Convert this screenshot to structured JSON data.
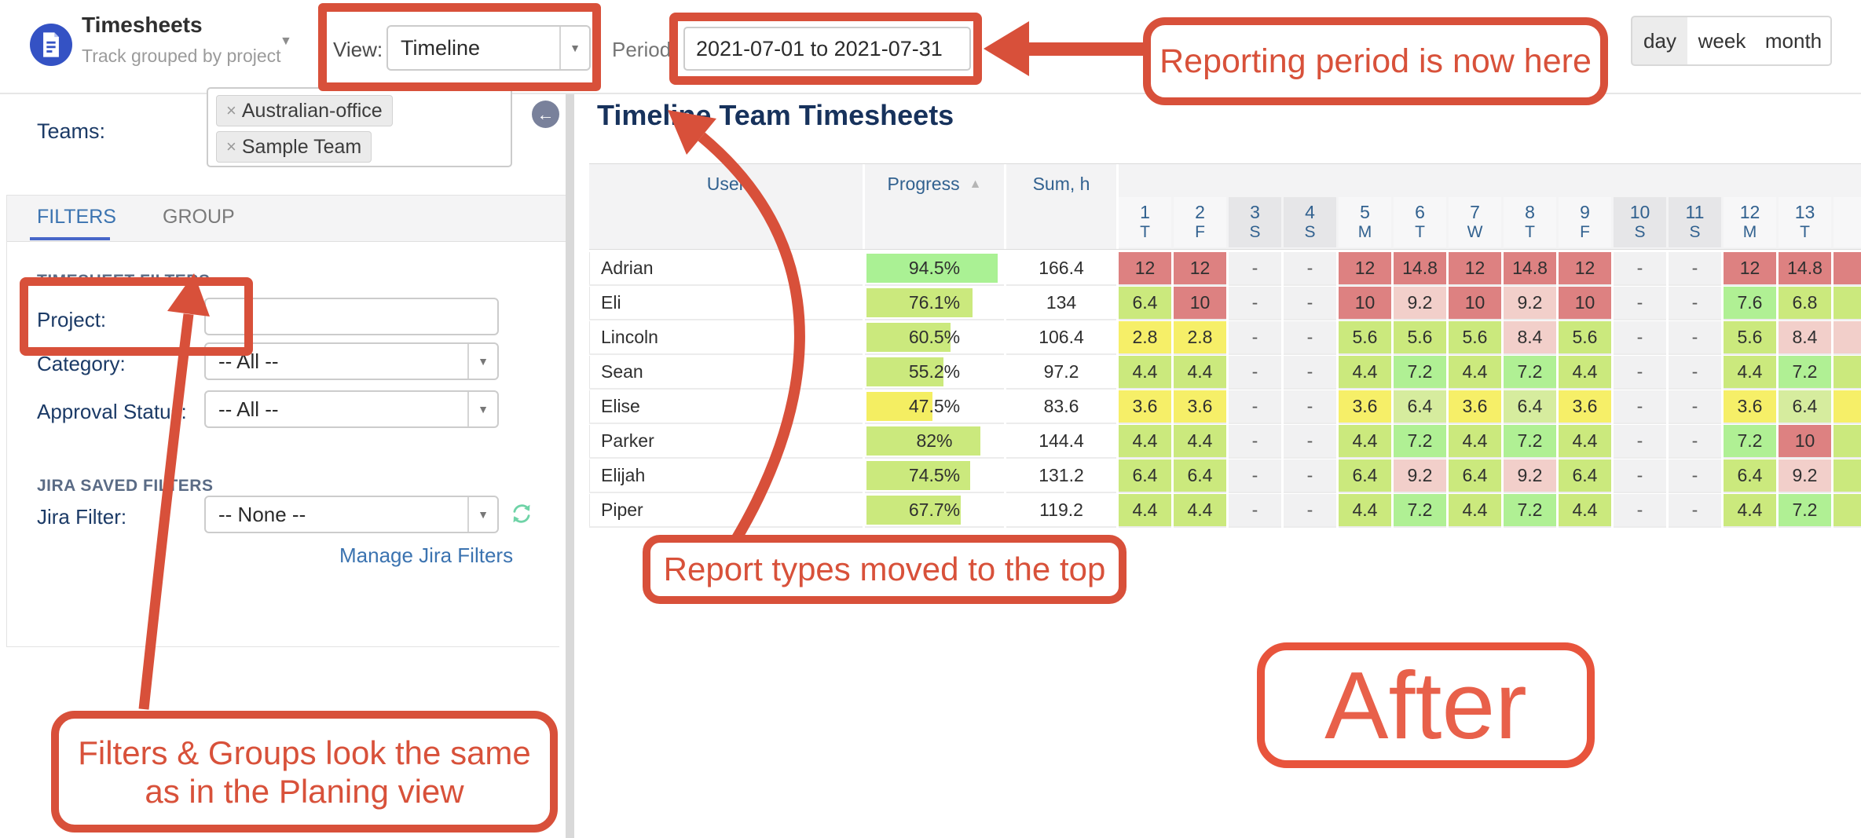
{
  "app": {
    "title": "Timesheets",
    "subtitle": "Track grouped by project"
  },
  "toolbar": {
    "view_label": "View:",
    "view_value": "Timeline",
    "period_label": "Period",
    "period_value": "2021-07-01 to 2021-07-31",
    "zoom_buttons": [
      {
        "label": "day",
        "active": true
      },
      {
        "label": "week",
        "active": false
      },
      {
        "label": "month",
        "active": false
      }
    ]
  },
  "sidebar": {
    "teams_label": "Teams:",
    "team_tags": [
      {
        "x": "×",
        "label": "Australian-office"
      },
      {
        "x": "×",
        "label": "Sample Team"
      }
    ],
    "tabs": {
      "filters": "FILTERS",
      "group": "GROUP"
    },
    "sections": {
      "timesheet_filters": "TIMESHEET FILTERS",
      "jira_saved_filters": "JIRA SAVED FILTERS"
    },
    "fields": {
      "project_label": "Project:",
      "project_value": "",
      "category_label": "Category:",
      "category_value": "-- All --",
      "approval_label": "Approval Status:",
      "approval_value": "-- All --",
      "jira_filter_label": "Jira Filter:",
      "jira_filter_value": "-- None --"
    },
    "manage_link": "Manage Jira Filters"
  },
  "main": {
    "heading": "Timeline Team Timesheets"
  },
  "table": {
    "columns": {
      "user": "User",
      "progress": "Progress",
      "sum": "Sum, h",
      "sort_caret": "▲"
    },
    "days": [
      {
        "num": "1",
        "dow": "T",
        "we": "0"
      },
      {
        "num": "2",
        "dow": "F",
        "we": "0"
      },
      {
        "num": "3",
        "dow": "S",
        "we": "1"
      },
      {
        "num": "4",
        "dow": "S",
        "we": "1"
      },
      {
        "num": "5",
        "dow": "M",
        "we": "0"
      },
      {
        "num": "6",
        "dow": "T",
        "we": "0"
      },
      {
        "num": "7",
        "dow": "W",
        "we": "0"
      },
      {
        "num": "8",
        "dow": "T",
        "we": "0"
      },
      {
        "num": "9",
        "dow": "F",
        "we": "0"
      },
      {
        "num": "10",
        "dow": "S",
        "we": "1"
      },
      {
        "num": "11",
        "dow": "S",
        "we": "1"
      },
      {
        "num": "12",
        "dow": "M",
        "we": "0"
      },
      {
        "num": "13",
        "dow": "T",
        "we": "0"
      }
    ],
    "rows": [
      {
        "user": "Adrian",
        "progress": "94.5%",
        "progress_pct": 94.5,
        "progress_tone": "bright",
        "sum": "166.4",
        "cells": [
          {
            "v": "12",
            "t": "red"
          },
          {
            "v": "12",
            "t": "red"
          },
          {
            "v": "-",
            "t": "off"
          },
          {
            "v": "-",
            "t": "off"
          },
          {
            "v": "12",
            "t": "red"
          },
          {
            "v": "14.8",
            "t": "red"
          },
          {
            "v": "12",
            "t": "red"
          },
          {
            "v": "14.8",
            "t": "red"
          },
          {
            "v": "12",
            "t": "red"
          },
          {
            "v": "-",
            "t": "off"
          },
          {
            "v": "-",
            "t": "off"
          },
          {
            "v": "12",
            "t": "red"
          },
          {
            "v": "14.8",
            "t": "red"
          },
          {
            "v": "",
            "t": "red"
          }
        ]
      },
      {
        "user": "Eli",
        "progress": "76.1%",
        "progress_pct": 76.1,
        "progress_tone": "green",
        "sum": "134",
        "cells": [
          {
            "v": "6.4",
            "t": "green"
          },
          {
            "v": "10",
            "t": "red"
          },
          {
            "v": "-",
            "t": "off"
          },
          {
            "v": "-",
            "t": "off"
          },
          {
            "v": "10",
            "t": "red"
          },
          {
            "v": "9.2",
            "t": "pink"
          },
          {
            "v": "10",
            "t": "red"
          },
          {
            "v": "9.2",
            "t": "pink"
          },
          {
            "v": "10",
            "t": "red"
          },
          {
            "v": "-",
            "t": "off"
          },
          {
            "v": "-",
            "t": "off"
          },
          {
            "v": "7.6",
            "t": "bgreen"
          },
          {
            "v": "6.8",
            "t": "green"
          },
          {
            "v": "",
            "t": "green"
          }
        ]
      },
      {
        "user": "Lincoln",
        "progress": "60.5%",
        "progress_pct": 60.5,
        "progress_tone": "green",
        "sum": "106.4",
        "cells": [
          {
            "v": "2.8",
            "t": "yellow"
          },
          {
            "v": "2.8",
            "t": "yellow"
          },
          {
            "v": "-",
            "t": "off"
          },
          {
            "v": "-",
            "t": "off"
          },
          {
            "v": "5.6",
            "t": "green"
          },
          {
            "v": "5.6",
            "t": "green"
          },
          {
            "v": "5.6",
            "t": "green"
          },
          {
            "v": "8.4",
            "t": "pink"
          },
          {
            "v": "5.6",
            "t": "green"
          },
          {
            "v": "-",
            "t": "off"
          },
          {
            "v": "-",
            "t": "off"
          },
          {
            "v": "5.6",
            "t": "green"
          },
          {
            "v": "8.4",
            "t": "pink"
          },
          {
            "v": "",
            "t": "pink"
          }
        ]
      },
      {
        "user": "Sean",
        "progress": "55.2%",
        "progress_pct": 55.2,
        "progress_tone": "green",
        "sum": "97.2",
        "cells": [
          {
            "v": "4.4",
            "t": "green"
          },
          {
            "v": "4.4",
            "t": "green"
          },
          {
            "v": "-",
            "t": "off"
          },
          {
            "v": "-",
            "t": "off"
          },
          {
            "v": "4.4",
            "t": "green"
          },
          {
            "v": "7.2",
            "t": "bgreen"
          },
          {
            "v": "4.4",
            "t": "green"
          },
          {
            "v": "7.2",
            "t": "bgreen"
          },
          {
            "v": "4.4",
            "t": "green"
          },
          {
            "v": "-",
            "t": "off"
          },
          {
            "v": "-",
            "t": "off"
          },
          {
            "v": "4.4",
            "t": "green"
          },
          {
            "v": "7.2",
            "t": "bgreen"
          },
          {
            "v": "",
            "t": "green"
          }
        ]
      },
      {
        "user": "Elise",
        "progress": "47.5%",
        "progress_pct": 47.5,
        "progress_tone": "yellow",
        "sum": "83.6",
        "cells": [
          {
            "v": "3.6",
            "t": "yellow"
          },
          {
            "v": "3.6",
            "t": "yellow"
          },
          {
            "v": "-",
            "t": "off"
          },
          {
            "v": "-",
            "t": "off"
          },
          {
            "v": "3.6",
            "t": "yellow"
          },
          {
            "v": "6.4",
            "t": "lgreen"
          },
          {
            "v": "3.6",
            "t": "yellow"
          },
          {
            "v": "6.4",
            "t": "lgreen"
          },
          {
            "v": "3.6",
            "t": "yellow"
          },
          {
            "v": "-",
            "t": "off"
          },
          {
            "v": "-",
            "t": "off"
          },
          {
            "v": "3.6",
            "t": "yellow"
          },
          {
            "v": "6.4",
            "t": "lgreen"
          },
          {
            "v": "",
            "t": "yellow"
          }
        ]
      },
      {
        "user": "Parker",
        "progress": "82%",
        "progress_pct": 82,
        "progress_tone": "green",
        "sum": "144.4",
        "cells": [
          {
            "v": "4.4",
            "t": "green"
          },
          {
            "v": "4.4",
            "t": "green"
          },
          {
            "v": "-",
            "t": "off"
          },
          {
            "v": "-",
            "t": "off"
          },
          {
            "v": "4.4",
            "t": "green"
          },
          {
            "v": "7.2",
            "t": "bgreen"
          },
          {
            "v": "4.4",
            "t": "green"
          },
          {
            "v": "7.2",
            "t": "bgreen"
          },
          {
            "v": "4.4",
            "t": "green"
          },
          {
            "v": "-",
            "t": "off"
          },
          {
            "v": "-",
            "t": "off"
          },
          {
            "v": "7.2",
            "t": "bgreen"
          },
          {
            "v": "10",
            "t": "red"
          },
          {
            "v": "",
            "t": "green"
          }
        ]
      },
      {
        "user": "Elijah",
        "progress": "74.5%",
        "progress_pct": 74.5,
        "progress_tone": "green",
        "sum": "131.2",
        "cells": [
          {
            "v": "6.4",
            "t": "green"
          },
          {
            "v": "6.4",
            "t": "green"
          },
          {
            "v": "-",
            "t": "off"
          },
          {
            "v": "-",
            "t": "off"
          },
          {
            "v": "6.4",
            "t": "green"
          },
          {
            "v": "9.2",
            "t": "pink"
          },
          {
            "v": "6.4",
            "t": "green"
          },
          {
            "v": "9.2",
            "t": "pink"
          },
          {
            "v": "6.4",
            "t": "green"
          },
          {
            "v": "-",
            "t": "off"
          },
          {
            "v": "-",
            "t": "off"
          },
          {
            "v": "6.4",
            "t": "green"
          },
          {
            "v": "9.2",
            "t": "pink"
          },
          {
            "v": "",
            "t": "green"
          }
        ]
      },
      {
        "user": "Piper",
        "progress": "67.7%",
        "progress_pct": 67.7,
        "progress_tone": "green",
        "sum": "119.2",
        "cells": [
          {
            "v": "4.4",
            "t": "green"
          },
          {
            "v": "4.4",
            "t": "green"
          },
          {
            "v": "-",
            "t": "off"
          },
          {
            "v": "-",
            "t": "off"
          },
          {
            "v": "4.4",
            "t": "green"
          },
          {
            "v": "7.2",
            "t": "bgreen"
          },
          {
            "v": "4.4",
            "t": "green"
          },
          {
            "v": "7.2",
            "t": "bgreen"
          },
          {
            "v": "4.4",
            "t": "green"
          },
          {
            "v": "-",
            "t": "off"
          },
          {
            "v": "-",
            "t": "off"
          },
          {
            "v": "4.4",
            "t": "green"
          },
          {
            "v": "7.2",
            "t": "bgreen"
          },
          {
            "v": "",
            "t": "green"
          }
        ]
      }
    ]
  },
  "annotations": {
    "period": "Reporting period is now here",
    "report_types": "Report types moved to the top",
    "filters_line1": "Filters & Groups look the same",
    "filters_line2": "as in the Planing view",
    "after": "After"
  },
  "colors": {
    "annotation_red": "#d8513a",
    "accent_blue": "#3b73b0",
    "label_navy": "#1b3a66",
    "header_text_blue": "#31618f",
    "icon_blue": "#3452c4",
    "refresh_green": "#6fd3a7",
    "cell_red": "#dd8181",
    "cell_pink": "#f2cfca",
    "cell_yellow": "#f6ef68",
    "cell_green": "#cbe97d",
    "cell_bright_green": "#b0f094",
    "cell_light_green": "#d6ec9e",
    "weekend_bg": "#e6e6e8"
  }
}
